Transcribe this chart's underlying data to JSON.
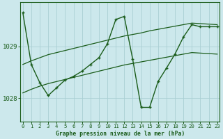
{
  "title": "Graphe pression niveau de la mer (hPa)",
  "bg_color": "#cce8ec",
  "grid_color": "#aacfd4",
  "line_color": "#1a5c1a",
  "x_ticks": [
    0,
    1,
    2,
    3,
    4,
    5,
    6,
    7,
    8,
    9,
    10,
    11,
    12,
    13,
    14,
    15,
    16,
    17,
    18,
    19,
    20,
    21,
    22,
    23
  ],
  "y_ticks": [
    1028,
    1029
  ],
  "ylim": [
    1027.55,
    1029.85
  ],
  "xlim": [
    -0.3,
    23.3
  ],
  "series": [
    {
      "x": [
        0,
        1,
        2,
        3,
        4,
        5,
        6,
        7,
        8,
        9,
        10,
        11,
        12,
        13,
        14,
        15,
        16,
        17,
        18,
        19,
        20,
        21,
        22,
        23
      ],
      "y": [
        1028.65,
        1028.72,
        1028.78,
        1028.84,
        1028.88,
        1028.92,
        1028.96,
        1029.0,
        1029.04,
        1029.08,
        1029.12,
        1029.16,
        1029.2,
        1029.23,
        1029.26,
        1029.3,
        1029.33,
        1029.36,
        1029.39,
        1029.42,
        1029.45,
        1029.44,
        1029.43,
        1029.42
      ],
      "marker": null,
      "linewidth": 0.9
    },
    {
      "x": [
        0,
        1,
        2,
        3,
        4,
        5,
        6,
        7,
        8,
        9,
        10,
        11,
        12,
        13,
        14,
        15,
        16,
        17,
        18,
        19,
        20,
        21,
        22,
        23
      ],
      "y": [
        1028.1,
        1028.17,
        1028.23,
        1028.28,
        1028.32,
        1028.36,
        1028.4,
        1028.44,
        1028.48,
        1028.52,
        1028.56,
        1028.6,
        1028.64,
        1028.67,
        1028.7,
        1028.73,
        1028.76,
        1028.79,
        1028.82,
        1028.85,
        1028.88,
        1028.87,
        1028.86,
        1028.85
      ],
      "marker": null,
      "linewidth": 0.9
    },
    {
      "x": [
        0,
        1,
        2,
        3,
        4,
        5,
        6,
        7,
        8,
        9,
        10,
        11,
        12,
        13,
        14,
        15,
        16,
        17,
        18,
        19,
        20,
        21,
        22,
        23
      ],
      "y": [
        1029.65,
        1028.65,
        1028.3,
        1028.05,
        1028.2,
        1028.35,
        1028.42,
        1028.52,
        1028.65,
        1028.78,
        1029.05,
        1029.52,
        1029.58,
        1028.75,
        1027.82,
        1027.82,
        1028.32,
        1028.58,
        1028.85,
        1029.18,
        1029.42,
        1029.38,
        1029.38,
        1029.38
      ],
      "marker": "+",
      "linewidth": 1.0
    }
  ]
}
